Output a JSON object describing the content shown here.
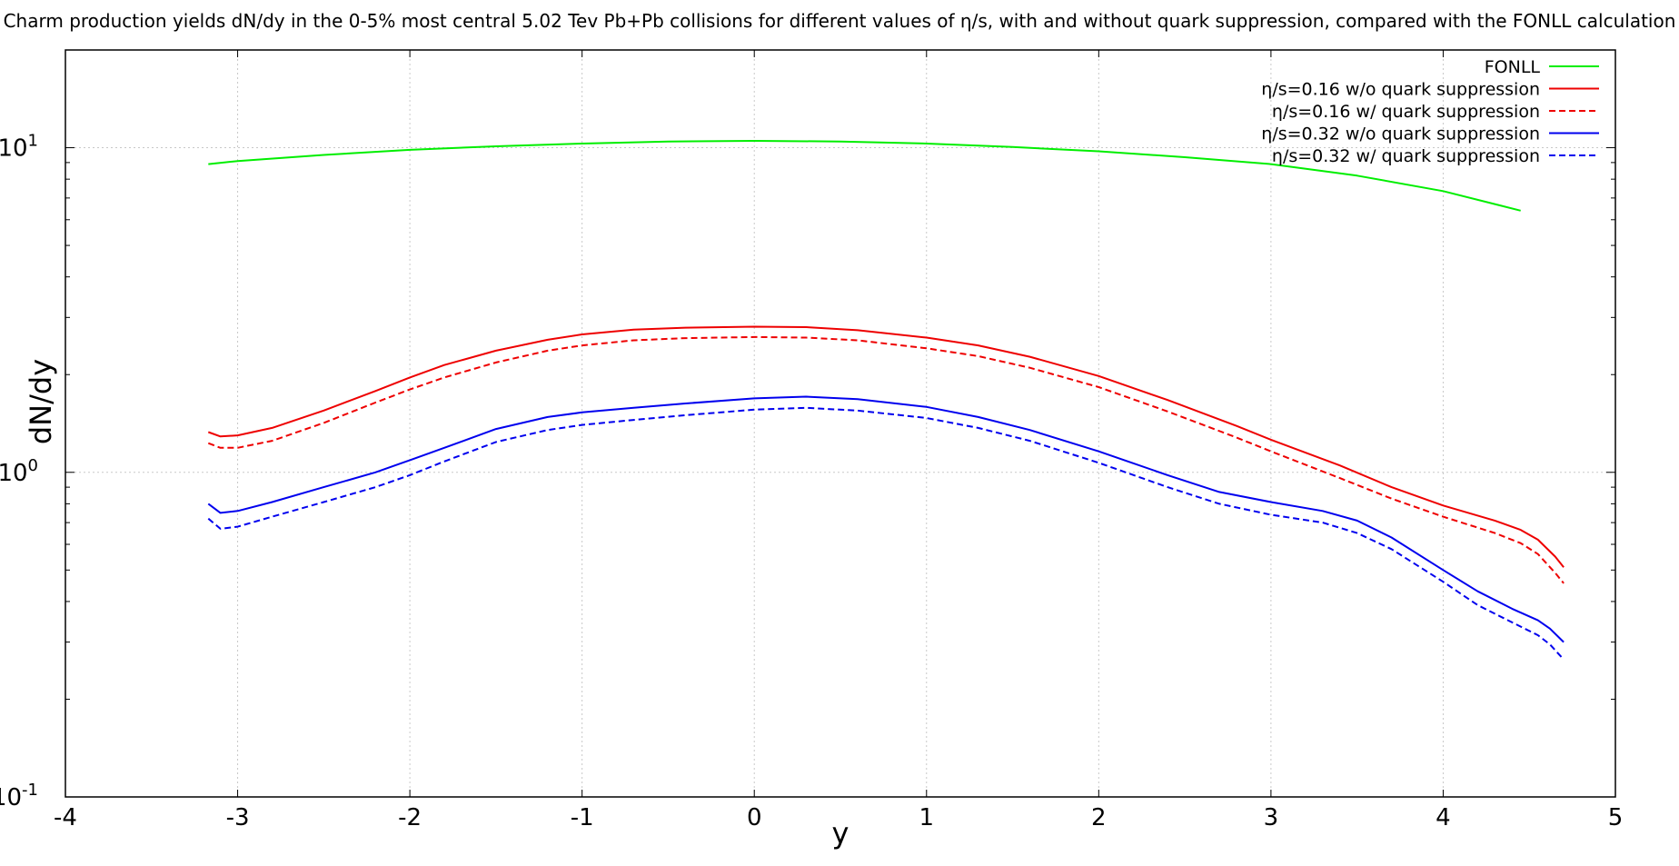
{
  "chart_data": {
    "type": "line",
    "title": "Charm production yields dN/dy in the 0-5% most central 5.02 Tev Pb+Pb collisions for different values of η/s, with and without quark suppression, compared with the FONLL calculation",
    "xlabel": "y",
    "ylabel": "dN/dy",
    "xlim": [
      -4,
      5
    ],
    "ylim": [
      0.1,
      20
    ],
    "y_scale": "log",
    "grid": true,
    "legend_position": "top-right",
    "x_ticks": [
      "-4",
      "-3",
      "-2",
      "-1",
      "0",
      "1",
      "2",
      "3",
      "4",
      "5"
    ],
    "y_ticks": [
      {
        "base": "10",
        "exp": "-1"
      },
      {
        "base": "10",
        "exp": "0"
      },
      {
        "base": "10",
        "exp": "1"
      }
    ],
    "series": [
      {
        "name": "FONLL",
        "color": "#00ee00",
        "dash": "solid",
        "points": [
          [
            -3.17,
            8.9
          ],
          [
            -3.0,
            9.1
          ],
          [
            -2.5,
            9.5
          ],
          [
            -2.0,
            9.85
          ],
          [
            -1.5,
            10.1
          ],
          [
            -1.0,
            10.3
          ],
          [
            -0.5,
            10.45
          ],
          [
            0.0,
            10.5
          ],
          [
            0.5,
            10.45
          ],
          [
            1.0,
            10.3
          ],
          [
            1.5,
            10.05
          ],
          [
            2.0,
            9.75
          ],
          [
            2.5,
            9.35
          ],
          [
            3.0,
            8.9
          ],
          [
            3.5,
            8.2
          ],
          [
            4.0,
            7.35
          ],
          [
            4.45,
            6.4
          ]
        ]
      },
      {
        "name": "η/s=0.16 w/o quark suppression",
        "color": "#ee0000",
        "dash": "solid",
        "points": [
          [
            -3.17,
            1.33
          ],
          [
            -3.1,
            1.29
          ],
          [
            -3.0,
            1.3
          ],
          [
            -2.8,
            1.37
          ],
          [
            -2.5,
            1.55
          ],
          [
            -2.2,
            1.78
          ],
          [
            -2.0,
            1.96
          ],
          [
            -1.8,
            2.14
          ],
          [
            -1.5,
            2.37
          ],
          [
            -1.2,
            2.56
          ],
          [
            -1.0,
            2.66
          ],
          [
            -0.7,
            2.75
          ],
          [
            -0.4,
            2.79
          ],
          [
            0.0,
            2.81
          ],
          [
            0.3,
            2.8
          ],
          [
            0.6,
            2.74
          ],
          [
            1.0,
            2.6
          ],
          [
            1.3,
            2.46
          ],
          [
            1.6,
            2.27
          ],
          [
            2.0,
            1.98
          ],
          [
            2.4,
            1.67
          ],
          [
            2.8,
            1.39
          ],
          [
            3.0,
            1.26
          ],
          [
            3.4,
            1.05
          ],
          [
            3.7,
            0.9
          ],
          [
            4.0,
            0.79
          ],
          [
            4.3,
            0.71
          ],
          [
            4.45,
            0.665
          ],
          [
            4.55,
            0.62
          ],
          [
            4.65,
            0.55
          ],
          [
            4.7,
            0.51
          ]
        ]
      },
      {
        "name": "η/s=0.16 w/ quark suppression",
        "color": "#ee0000",
        "dash": "dashed",
        "points": [
          [
            -3.17,
            1.23
          ],
          [
            -3.1,
            1.19
          ],
          [
            -3.0,
            1.19
          ],
          [
            -2.8,
            1.25
          ],
          [
            -2.5,
            1.42
          ],
          [
            -2.2,
            1.64
          ],
          [
            -2.0,
            1.8
          ],
          [
            -1.8,
            1.96
          ],
          [
            -1.5,
            2.18
          ],
          [
            -1.2,
            2.37
          ],
          [
            -1.0,
            2.46
          ],
          [
            -0.7,
            2.55
          ],
          [
            -0.4,
            2.59
          ],
          [
            0.0,
            2.61
          ],
          [
            0.3,
            2.6
          ],
          [
            0.6,
            2.55
          ],
          [
            1.0,
            2.41
          ],
          [
            1.3,
            2.28
          ],
          [
            1.6,
            2.1
          ],
          [
            2.0,
            1.83
          ],
          [
            2.4,
            1.54
          ],
          [
            2.8,
            1.28
          ],
          [
            3.0,
            1.16
          ],
          [
            3.4,
            0.96
          ],
          [
            3.7,
            0.83
          ],
          [
            4.0,
            0.73
          ],
          [
            4.3,
            0.65
          ],
          [
            4.45,
            0.605
          ],
          [
            4.55,
            0.56
          ],
          [
            4.65,
            0.49
          ],
          [
            4.7,
            0.455
          ]
        ]
      },
      {
        "name": "η/s=0.32 w/o quark suppression",
        "color": "#0000ee",
        "dash": "solid",
        "points": [
          [
            -3.17,
            0.8
          ],
          [
            -3.1,
            0.75
          ],
          [
            -3.0,
            0.76
          ],
          [
            -2.8,
            0.81
          ],
          [
            -2.5,
            0.9
          ],
          [
            -2.2,
            1.0
          ],
          [
            -2.0,
            1.09
          ],
          [
            -1.8,
            1.19
          ],
          [
            -1.5,
            1.36
          ],
          [
            -1.2,
            1.48
          ],
          [
            -1.0,
            1.53
          ],
          [
            -0.7,
            1.58
          ],
          [
            -0.4,
            1.63
          ],
          [
            0.0,
            1.69
          ],
          [
            0.3,
            1.71
          ],
          [
            0.6,
            1.68
          ],
          [
            1.0,
            1.59
          ],
          [
            1.3,
            1.48
          ],
          [
            1.6,
            1.35
          ],
          [
            2.0,
            1.16
          ],
          [
            2.4,
            0.98
          ],
          [
            2.7,
            0.87
          ],
          [
            3.0,
            0.81
          ],
          [
            3.3,
            0.76
          ],
          [
            3.5,
            0.71
          ],
          [
            3.7,
            0.63
          ],
          [
            4.0,
            0.5
          ],
          [
            4.2,
            0.43
          ],
          [
            4.4,
            0.38
          ],
          [
            4.55,
            0.35
          ],
          [
            4.62,
            0.33
          ],
          [
            4.7,
            0.3
          ]
        ]
      },
      {
        "name": "η/s=0.32 w/ quark suppression",
        "color": "#0000ee",
        "dash": "dashed",
        "points": [
          [
            -3.17,
            0.72
          ],
          [
            -3.1,
            0.67
          ],
          [
            -3.0,
            0.68
          ],
          [
            -2.8,
            0.73
          ],
          [
            -2.5,
            0.81
          ],
          [
            -2.2,
            0.9
          ],
          [
            -2.0,
            0.98
          ],
          [
            -1.8,
            1.08
          ],
          [
            -1.5,
            1.24
          ],
          [
            -1.2,
            1.35
          ],
          [
            -1.0,
            1.4
          ],
          [
            -0.7,
            1.45
          ],
          [
            -0.4,
            1.5
          ],
          [
            0.0,
            1.56
          ],
          [
            0.3,
            1.58
          ],
          [
            0.6,
            1.55
          ],
          [
            1.0,
            1.47
          ],
          [
            1.3,
            1.37
          ],
          [
            1.6,
            1.25
          ],
          [
            2.0,
            1.07
          ],
          [
            2.4,
            0.9
          ],
          [
            2.7,
            0.8
          ],
          [
            3.0,
            0.74
          ],
          [
            3.3,
            0.7
          ],
          [
            3.5,
            0.65
          ],
          [
            3.7,
            0.58
          ],
          [
            4.0,
            0.46
          ],
          [
            4.2,
            0.39
          ],
          [
            4.4,
            0.345
          ],
          [
            4.55,
            0.315
          ],
          [
            4.62,
            0.295
          ],
          [
            4.7,
            0.265
          ]
        ]
      }
    ]
  }
}
